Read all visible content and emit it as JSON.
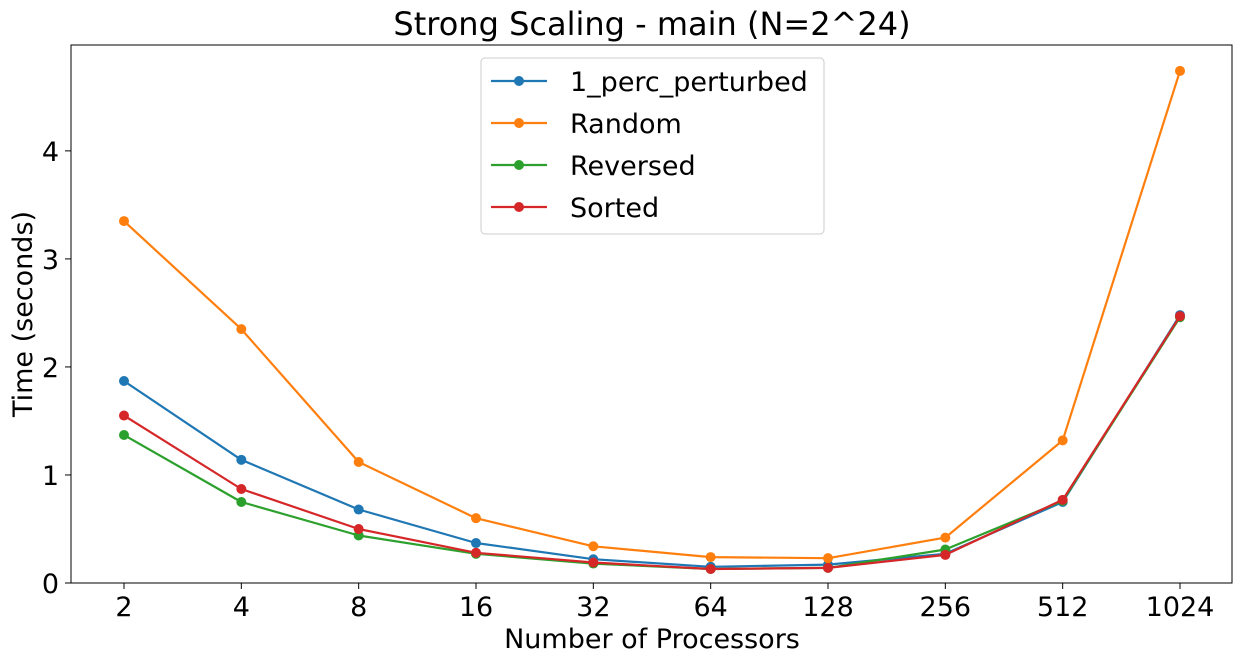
{
  "chart_data": {
    "type": "line",
    "title": "Strong Scaling - main (N=2^24)",
    "xlabel": "Number of Processors",
    "ylabel": "Time (seconds)",
    "categories": [
      "2",
      "4",
      "8",
      "16",
      "32",
      "64",
      "128",
      "256",
      "512",
      "1024"
    ],
    "ylim": [
      0,
      4.98
    ],
    "yticks": [
      "0",
      "1",
      "2",
      "3",
      "4"
    ],
    "grid": false,
    "legend_position": "upper-center",
    "series": [
      {
        "name": "1_perc_perturbed",
        "color": "#1f77b4",
        "values": [
          1.87,
          1.14,
          0.68,
          0.37,
          0.22,
          0.15,
          0.17,
          0.27,
          0.75,
          2.48
        ]
      },
      {
        "name": "Random",
        "color": "#ff7f0e",
        "values": [
          3.35,
          2.35,
          1.12,
          0.6,
          0.34,
          0.24,
          0.23,
          0.42,
          1.32,
          4.74
        ]
      },
      {
        "name": "Reversed",
        "color": "#2ca02c",
        "values": [
          1.37,
          0.75,
          0.44,
          0.27,
          0.18,
          0.13,
          0.14,
          0.31,
          0.76,
          2.46
        ]
      },
      {
        "name": "Sorted",
        "color": "#d62728",
        "values": [
          1.55,
          0.87,
          0.5,
          0.28,
          0.19,
          0.13,
          0.14,
          0.26,
          0.77,
          2.47
        ]
      }
    ]
  }
}
